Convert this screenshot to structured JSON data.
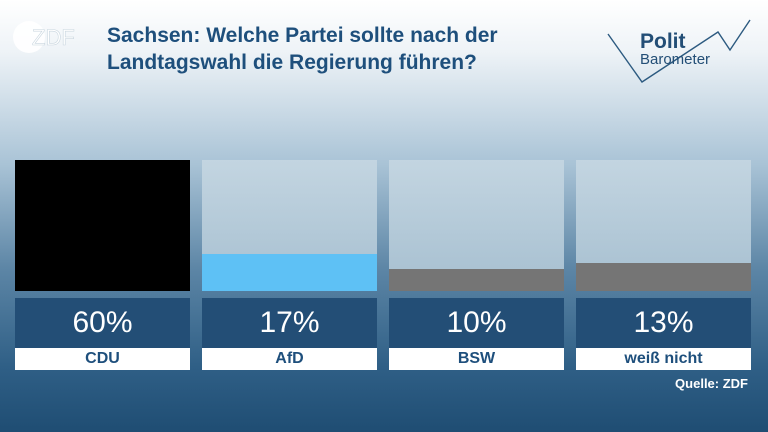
{
  "brand": {
    "logo_text": "ZDF"
  },
  "title_line1": "Sachsen: Welche Partei sollte nach der",
  "title_line2": "Landtagswahl die Regierung führen?",
  "polit_logo": {
    "line1": "Polit",
    "line2": "Barometer"
  },
  "chart_data": {
    "type": "bar",
    "categories": [
      "CDU",
      "AfD",
      "BSW",
      "weiß nicht"
    ],
    "values": [
      60,
      17,
      10,
      13
    ],
    "value_labels": [
      "60%",
      "17%",
      "10%",
      "13%"
    ],
    "unit": "%",
    "ylim": [
      0,
      60
    ],
    "colors": [
      "#000000",
      "#5ec1f5",
      "#757575",
      "#757575"
    ],
    "title": "Sachsen: Welche Partei sollte nach der Landtagswahl die Regierung führen?"
  },
  "source": "Quelle: ZDF"
}
